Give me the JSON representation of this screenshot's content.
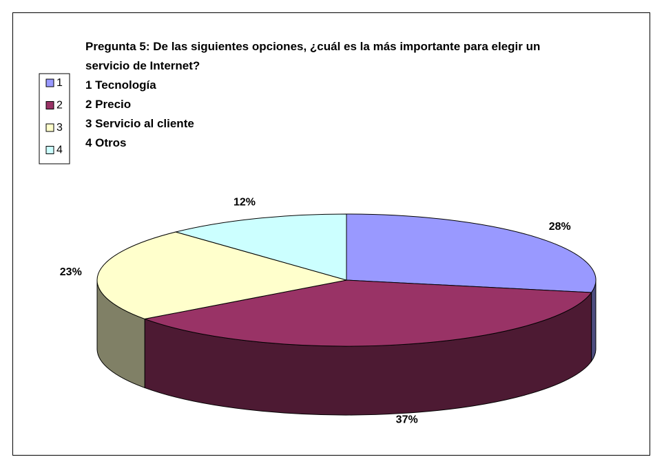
{
  "chart_data": {
    "type": "pie",
    "title": "Pregunta 5: De las siguientes opciones, ¿cuál es la más importante para elegir un servicio de Internet?",
    "annotations": [
      "1 Tecnología",
      "2 Precio",
      "3 Servicio al cliente",
      "4 Otros"
    ],
    "categories": [
      "1",
      "2",
      "3",
      "4"
    ],
    "values": [
      28,
      37,
      23,
      12
    ],
    "value_labels": [
      "28%",
      "37%",
      "23%",
      "12%"
    ],
    "colors": [
      "#9999ff",
      "#993366",
      "#ffffcc",
      "#ccffff"
    ],
    "legend": "left"
  }
}
